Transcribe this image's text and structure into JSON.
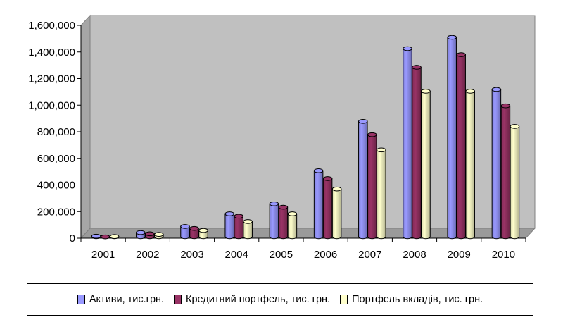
{
  "chart_data": {
    "type": "bar",
    "categories": [
      "2001",
      "2002",
      "2003",
      "2004",
      "2005",
      "2006",
      "2007",
      "2008",
      "2009",
      "2010"
    ],
    "series": [
      {
        "name": "Активи, тис.грн.",
        "color": "#9999ff",
        "values": [
          15000,
          42000,
          88000,
          183000,
          258000,
          507000,
          878000,
          1425000,
          1510000,
          1118000
        ]
      },
      {
        "name": "Кредитний портфель, тис. грн.",
        "color": "#993366",
        "values": [
          10000,
          33000,
          73000,
          165000,
          233000,
          448000,
          778000,
          1285000,
          1380000,
          995000
        ]
      },
      {
        "name": "Портфель вкладів, тис. грн.",
        "color": "#ffffcc",
        "values": [
          12000,
          28000,
          58000,
          125000,
          183000,
          370000,
          663000,
          1105000,
          1105000,
          840000
        ]
      }
    ],
    "yticks": [
      "0",
      "200,000",
      "400,000",
      "600,000",
      "800,000",
      "1,000,000",
      "1,200,000",
      "1,400,000",
      "1,600,000"
    ],
    "ylim": [
      0,
      1600000
    ],
    "grid": false,
    "legend_position": "bottom",
    "plot_background": "#c0c0c0"
  }
}
